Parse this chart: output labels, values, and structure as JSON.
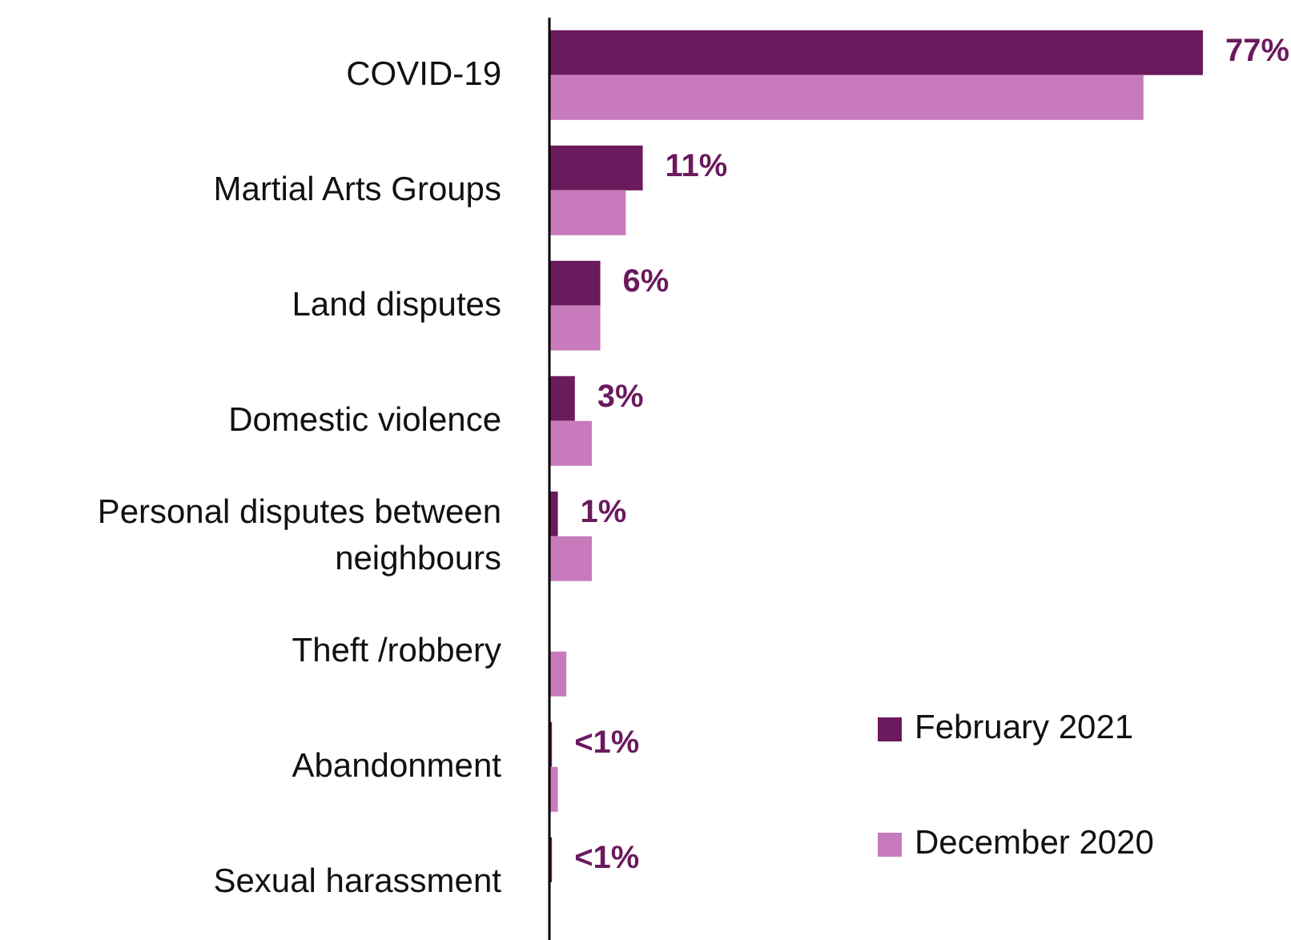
{
  "chart_data": {
    "type": "bar",
    "orientation": "horizontal",
    "tick_labels": "y",
    "categories": [
      "COVID-19",
      "Martial Arts Groups",
      "Land disputes",
      "Domestic violence",
      "Personal disputes between neighbours",
      "Theft /robbery",
      "Abandonment",
      "Sexual harassment"
    ],
    "series": [
      {
        "name": "February 2021",
        "color": "#6b1a5e",
        "values": [
          77,
          11,
          6,
          3,
          1,
          null,
          0.3,
          0.3
        ],
        "value_labels": [
          "77%",
          "11%",
          "6%",
          "3%",
          "1%",
          null,
          "<1%",
          "<1%"
        ]
      },
      {
        "name": "December 2020",
        "color": "#c77bbd",
        "values": [
          70,
          9,
          6,
          5,
          5,
          2,
          1,
          null
        ]
      }
    ],
    "legend": "bottom right"
  }
}
